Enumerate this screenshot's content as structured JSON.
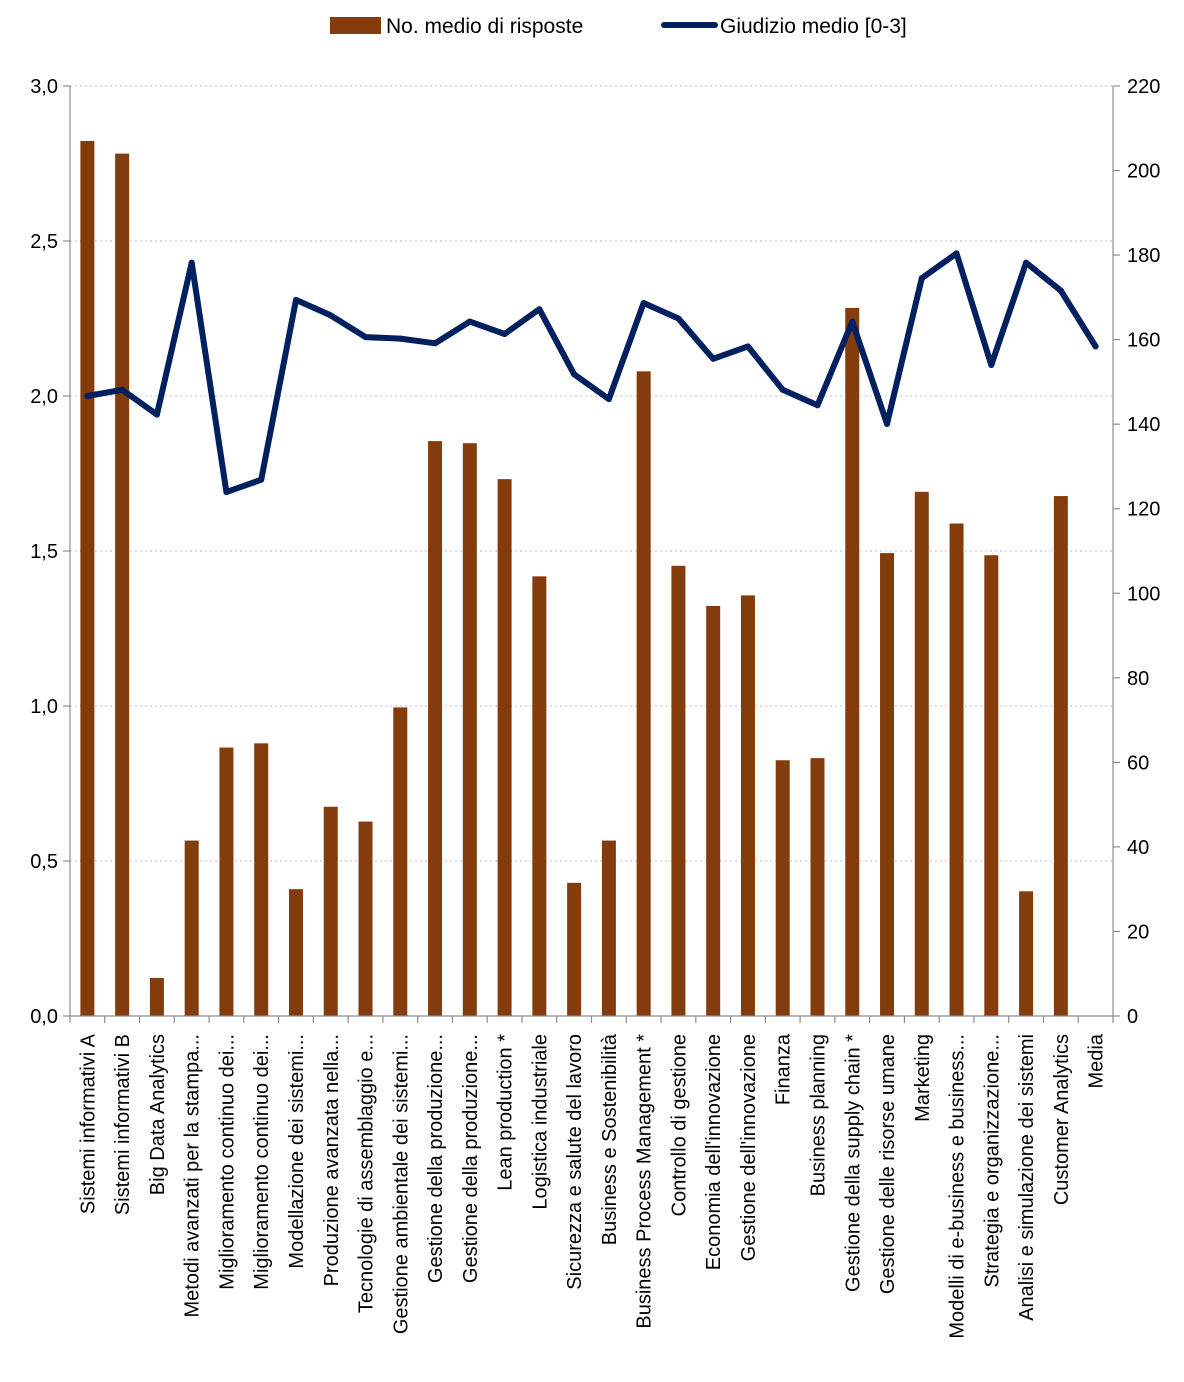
{
  "chart_data": {
    "type": "bar",
    "title": "",
    "xlabel": "",
    "ylabel": "",
    "y2label": "",
    "categories": [
      "Sistemi informativi A",
      "Sistemi informativi B",
      "Big Data Analytics",
      "Metodi avanzati per la stampa...",
      "Miglioramento continuo dei...",
      "Miglioramento continuo dei...",
      "Modellazione dei sistemi...",
      "Produzione avanzata nella...",
      "Tecnologie di assemblaggio e...",
      "Gestione ambientale dei sistemi...",
      "Gestione della produzione...",
      "Gestione della produzione...",
      "Lean production *",
      "Logistica industriale",
      "Sicurezza e salute del lavoro",
      "Business e Sostenibilità",
      "Business Process Management *",
      "Controllo di gestione",
      "Economia dell'innovazione",
      "Gestione dell'innovazione",
      "Finanza",
      "Business planning",
      "Gestione della supply chain *",
      "Gestione delle risorse umane",
      "Marketing",
      "Modelli di e-business e business...",
      "Strategia e organizzazione...",
      "Analisi e simulazione dei sistemi",
      "Customer Analytics",
      "Media"
    ],
    "series": [
      {
        "name": "No. medio di risposte",
        "type": "bar",
        "axis": "right",
        "color": "#843c0c",
        "values": [
          207,
          204,
          9,
          41.5,
          63.5,
          64.5,
          30,
          49.5,
          46,
          73,
          136,
          135.5,
          127,
          104,
          31.5,
          41.5,
          152.5,
          106.5,
          97,
          99.5,
          60.5,
          61,
          167.5,
          109.5,
          124,
          116.5,
          109,
          29.5,
          123,
          null
        ]
      },
      {
        "name": "Giudizio medio [0-3]",
        "type": "line",
        "axis": "left",
        "color": "#002060",
        "values": [
          2.0,
          2.02,
          1.94,
          2.43,
          1.69,
          1.73,
          2.31,
          2.26,
          2.19,
          2.185,
          2.17,
          2.24,
          2.2,
          2.28,
          2.07,
          1.99,
          2.3,
          2.25,
          2.12,
          2.16,
          2.02,
          1.97,
          2.24,
          1.91,
          2.38,
          2.46,
          2.1,
          2.43,
          2.34,
          2.16
        ]
      }
    ],
    "y_left": {
      "min": 0,
      "max": 3,
      "ticks": [
        "0,0",
        "0,5",
        "1,0",
        "1,5",
        "2,0",
        "2,5",
        "3,0"
      ]
    },
    "y_right": {
      "min": 0,
      "max": 220,
      "ticks": [
        "0",
        "20",
        "40",
        "60",
        "80",
        "100",
        "120",
        "140",
        "160",
        "180",
        "200",
        "220"
      ]
    },
    "grid": true,
    "legend_position": "top"
  }
}
